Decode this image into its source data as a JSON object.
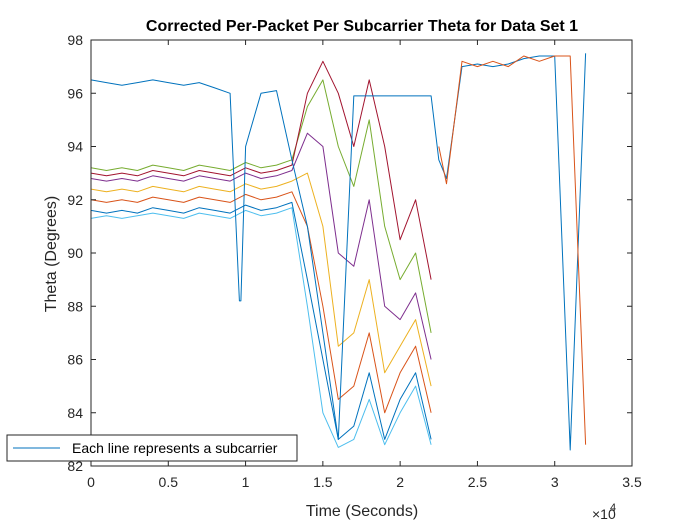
{
  "chart_data": {
    "type": "line",
    "title": "Corrected Per-Packet Per Subcarrier Theta for Data Set 1",
    "xlabel": "Time (Seconds)",
    "ylabel": "Theta (Degrees)",
    "xlim": [
      0,
      35000
    ],
    "ylim": [
      82,
      98
    ],
    "x_ticks": [
      0,
      5000,
      10000,
      15000,
      20000,
      25000,
      30000,
      35000
    ],
    "x_tick_labels": [
      "0",
      "0.5",
      "1",
      "1.5",
      "2",
      "2.5",
      "3",
      "3.5"
    ],
    "x_exponent_label": "×10",
    "x_exponent_power": "4",
    "y_ticks": [
      82,
      84,
      86,
      88,
      90,
      92,
      94,
      96,
      98
    ],
    "y_tick_labels": [
      "82",
      "84",
      "86",
      "88",
      "90",
      "92",
      "94",
      "96",
      "98"
    ],
    "grid": false,
    "legend": {
      "entries": [
        "Each line represents a subcarrier"
      ],
      "placement": "bottom-left"
    },
    "colors": [
      "#0072BD",
      "#D95319",
      "#EDB120",
      "#7E2F8E",
      "#77AC30",
      "#4DBEEE",
      "#A2142F"
    ],
    "series": [
      {
        "x": [
          0,
          1000,
          2000,
          3000,
          4000,
          5000,
          6000,
          7000,
          8000,
          9000,
          10000,
          11000,
          12000,
          13000,
          14000,
          15000,
          16000,
          17000,
          18000,
          19000,
          20000,
          21000,
          22000
        ],
        "y": [
          91.6,
          91.5,
          91.6,
          91.5,
          91.7,
          91.6,
          91.5,
          91.7,
          91.6,
          91.5,
          91.8,
          91.6,
          91.7,
          91.9,
          89.0,
          86.0,
          83.0,
          83.5,
          85.5,
          83.0,
          84.5,
          85.5,
          83.0
        ]
      },
      {
        "x": [
          0,
          1000,
          2000,
          3000,
          4000,
          5000,
          6000,
          7000,
          8000,
          9000,
          10000,
          11000,
          12000,
          13000,
          14000,
          15000,
          16000,
          17000,
          18000,
          19000,
          20000,
          21000,
          22000
        ],
        "y": [
          92.0,
          91.9,
          92.0,
          91.9,
          92.1,
          92.0,
          91.9,
          92.1,
          92.0,
          91.9,
          92.2,
          92.0,
          92.1,
          92.3,
          91.0,
          88.0,
          84.5,
          85.0,
          87.0,
          84.0,
          85.5,
          86.5,
          84.0
        ]
      },
      {
        "x": [
          0,
          1000,
          2000,
          3000,
          4000,
          5000,
          6000,
          7000,
          8000,
          9000,
          10000,
          11000,
          12000,
          13000,
          14000,
          15000,
          16000,
          17000,
          18000,
          19000,
          20000,
          21000,
          22000
        ],
        "y": [
          92.4,
          92.3,
          92.4,
          92.3,
          92.5,
          92.4,
          92.3,
          92.5,
          92.4,
          92.3,
          92.6,
          92.4,
          92.5,
          92.7,
          93.0,
          91.0,
          86.5,
          87.0,
          89.0,
          85.5,
          86.5,
          87.5,
          85.0
        ]
      },
      {
        "x": [
          0,
          1000,
          2000,
          3000,
          4000,
          5000,
          6000,
          7000,
          8000,
          9000,
          10000,
          11000,
          12000,
          13000,
          14000,
          15000,
          16000,
          17000,
          18000,
          19000,
          20000,
          21000,
          22000
        ],
        "y": [
          92.8,
          92.7,
          92.8,
          92.7,
          92.9,
          92.8,
          92.7,
          92.9,
          92.8,
          92.7,
          93.0,
          92.8,
          92.9,
          93.1,
          94.5,
          94.0,
          90.0,
          89.5,
          92.0,
          88.0,
          87.5,
          88.5,
          86.0
        ]
      },
      {
        "x": [
          0,
          1000,
          2000,
          3000,
          4000,
          5000,
          6000,
          7000,
          8000,
          9000,
          10000,
          11000,
          12000,
          13000,
          14000,
          15000,
          16000,
          17000,
          18000,
          19000,
          20000,
          21000,
          22000
        ],
        "y": [
          93.2,
          93.1,
          93.2,
          93.1,
          93.3,
          93.2,
          93.1,
          93.3,
          93.2,
          93.1,
          93.4,
          93.2,
          93.3,
          93.5,
          95.5,
          96.5,
          94.0,
          92.5,
          95.0,
          91.0,
          89.0,
          90.0,
          87.0
        ]
      },
      {
        "x": [
          0,
          1000,
          2000,
          3000,
          4000,
          5000,
          6000,
          7000,
          8000,
          9000,
          10000,
          11000,
          12000,
          13000,
          14000,
          15000,
          16000,
          17000,
          18000,
          19000,
          20000,
          21000,
          22000
        ],
        "y": [
          91.3,
          91.4,
          91.3,
          91.4,
          91.5,
          91.4,
          91.3,
          91.5,
          91.4,
          91.3,
          91.6,
          91.4,
          91.5,
          91.7,
          88.0,
          84.0,
          82.7,
          83.0,
          84.5,
          82.8,
          84.0,
          85.0,
          82.8
        ]
      },
      {
        "x": [
          0,
          1000,
          2000,
          3000,
          4000,
          5000,
          6000,
          7000,
          8000,
          9000,
          10000,
          11000,
          12000,
          13000,
          14000,
          15000,
          16000,
          17000,
          18000,
          19000,
          20000,
          21000,
          22000
        ],
        "y": [
          93.0,
          92.9,
          93.0,
          92.9,
          93.1,
          93.0,
          92.9,
          93.1,
          93.0,
          92.9,
          93.2,
          93.0,
          93.1,
          93.3,
          96.0,
          97.2,
          96.0,
          94.0,
          96.5,
          94.0,
          90.5,
          92.0,
          89.0
        ]
      },
      {
        "x": [
          0,
          1000,
          2000,
          3000,
          4000,
          5000,
          6000,
          7000,
          8000,
          9000,
          9600,
          9700,
          10000,
          11000,
          12000,
          13000,
          14000,
          15000,
          16000,
          17000,
          18000,
          19000,
          20000,
          21000,
          22000,
          22500,
          23000,
          24000,
          25000,
          26000,
          27000,
          28000,
          29000,
          30000,
          31000,
          32000
        ],
        "y": [
          96.5,
          96.4,
          96.3,
          96.4,
          96.5,
          96.4,
          96.3,
          96.4,
          96.2,
          96.0,
          88.2,
          88.2,
          94.0,
          96.0,
          96.1,
          93.5,
          91.0,
          87.0,
          83.0,
          95.9,
          95.9,
          95.9,
          95.9,
          95.9,
          95.9,
          93.5,
          92.8,
          97.0,
          97.1,
          97.0,
          97.1,
          97.3,
          97.4,
          97.4,
          82.6,
          97.5
        ]
      },
      {
        "x": [
          22500,
          23000,
          24000,
          25000,
          26000,
          27000,
          28000,
          29000,
          30000,
          31000,
          32000
        ],
        "y": [
          94.0,
          92.6,
          97.2,
          97.0,
          97.2,
          97.0,
          97.4,
          97.2,
          97.4,
          97.4,
          82.8
        ]
      }
    ]
  }
}
